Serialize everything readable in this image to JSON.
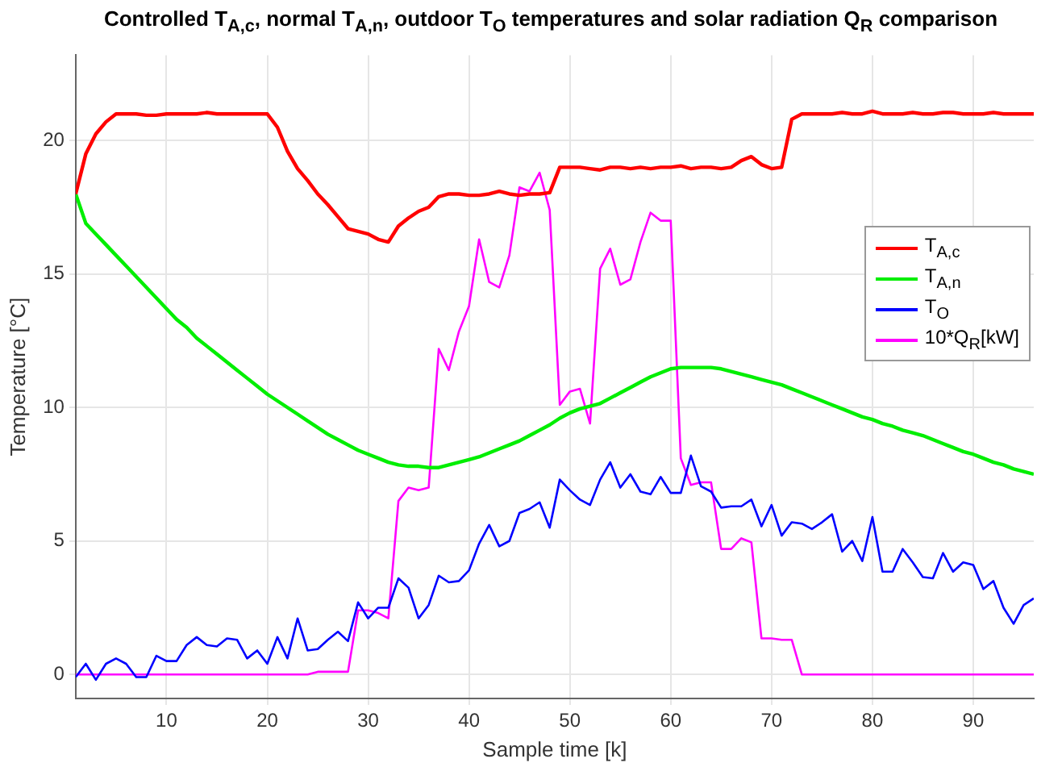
{
  "chart_data": {
    "type": "line",
    "title": "Controlled T$_{A,c}$, normal T$_{A,n}$, outdoor T$_{O}$ temperatures and solar radiation Q$_{R}$ comparison",
    "xlabel": "Sample time [k]",
    "ylabel": "Temperature [°C]",
    "x": [
      1,
      2,
      3,
      4,
      5,
      6,
      7,
      8,
      9,
      10,
      11,
      12,
      13,
      14,
      15,
      16,
      17,
      18,
      19,
      20,
      21,
      22,
      23,
      24,
      25,
      26,
      27,
      28,
      29,
      30,
      31,
      32,
      33,
      34,
      35,
      36,
      37,
      38,
      39,
      40,
      41,
      42,
      43,
      44,
      45,
      46,
      47,
      48,
      49,
      50,
      51,
      52,
      53,
      54,
      55,
      56,
      57,
      58,
      59,
      60,
      61,
      62,
      63,
      64,
      65,
      66,
      67,
      68,
      69,
      70,
      71,
      72,
      73,
      74,
      75,
      76,
      77,
      78,
      79,
      80,
      81,
      82,
      83,
      84,
      85,
      86,
      87,
      88,
      89,
      90,
      91,
      92,
      93,
      94,
      95,
      96
    ],
    "series": [
      {
        "name": "T$_{A,c}$",
        "color": "#ff0000",
        "values": [
          18,
          19.5,
          20.25,
          20.7,
          21,
          21,
          21,
          20.95,
          20.95,
          21,
          21,
          21,
          21,
          21.05,
          21,
          21,
          21,
          21,
          21,
          21,
          20.5,
          19.6,
          18.95,
          18.5,
          18,
          17.6,
          17.15,
          16.7,
          16.6,
          16.5,
          16.3,
          16.2,
          16.8,
          17.1,
          17.35,
          17.5,
          17.9,
          18,
          18,
          17.95,
          17.95,
          18,
          18.1,
          18,
          17.95,
          18,
          18,
          18.05,
          19,
          19,
          19,
          18.95,
          18.9,
          19,
          19,
          18.95,
          19,
          18.95,
          19,
          19,
          19.05,
          18.95,
          19,
          19,
          18.95,
          19,
          19.25,
          19.4,
          19.1,
          18.95,
          19,
          20.8,
          21,
          21,
          21,
          21,
          21.05,
          21,
          21,
          21.1,
          21,
          21,
          21,
          21.05,
          21,
          21,
          21.05,
          21.05,
          21,
          21,
          21,
          21.05,
          21,
          21,
          21,
          21
        ]
      },
      {
        "name": "T$_{A,n}$",
        "color": "#00ee00",
        "values": [
          18,
          16.9,
          16.5,
          16.1,
          15.7,
          15.3,
          14.9,
          14.5,
          14.1,
          13.7,
          13.3,
          13,
          12.6,
          12.3,
          12,
          11.7,
          11.4,
          11.1,
          10.8,
          10.5,
          10.25,
          10,
          9.75,
          9.5,
          9.25,
          9,
          8.8,
          8.6,
          8.4,
          8.25,
          8.1,
          7.95,
          7.85,
          7.8,
          7.8,
          7.75,
          7.75,
          7.85,
          7.95,
          8.05,
          8.15,
          8.3,
          8.45,
          8.6,
          8.75,
          8.95,
          9.15,
          9.35,
          9.6,
          9.8,
          9.95,
          10.05,
          10.15,
          10.35,
          10.55,
          10.75,
          10.95,
          11.15,
          11.3,
          11.45,
          11.5,
          11.5,
          11.5,
          11.5,
          11.45,
          11.35,
          11.25,
          11.15,
          11.05,
          10.95,
          10.85,
          10.7,
          10.55,
          10.4,
          10.25,
          10.1,
          9.95,
          9.8,
          9.65,
          9.55,
          9.4,
          9.3,
          9.15,
          9.05,
          8.95,
          8.8,
          8.65,
          8.5,
          8.35,
          8.25,
          8.1,
          7.95,
          7.85,
          7.7,
          7.6,
          7.5
        ]
      },
      {
        "name": "T$_{O}$",
        "color": "#0000ff",
        "values": [
          -0.1,
          0.4,
          -0.2,
          0.4,
          0.6,
          0.4,
          -0.1,
          -0.1,
          0.7,
          0.5,
          0.5,
          1.1,
          1.4,
          1.1,
          1.05,
          1.35,
          1.3,
          0.6,
          0.9,
          0.4,
          1.4,
          0.6,
          2.1,
          0.9,
          0.95,
          1.3,
          1.6,
          1.25,
          2.7,
          2.1,
          2.5,
          2.5,
          3.6,
          3.25,
          2.1,
          2.6,
          3.7,
          3.45,
          3.5,
          3.9,
          4.9,
          5.6,
          4.8,
          5,
          6.05,
          6.2,
          6.45,
          5.5,
          7.3,
          6.9,
          6.55,
          6.35,
          7.3,
          7.95,
          7,
          7.5,
          6.85,
          6.75,
          7.4,
          6.8,
          6.8,
          8.2,
          7.05,
          6.85,
          6.25,
          6.3,
          6.3,
          6.55,
          5.55,
          6.35,
          5.2,
          5.7,
          5.65,
          5.45,
          5.7,
          6,
          4.6,
          5,
          4.25,
          5.9,
          3.85,
          3.85,
          4.7,
          4.2,
          3.65,
          3.6,
          4.55,
          3.85,
          4.2,
          4.1,
          3.2,
          3.5,
          2.5,
          1.9,
          2.6,
          2.85
        ]
      },
      {
        "name": "10*Q$_{R}$[kW]",
        "color": "#ff00ff",
        "values": [
          0,
          0,
          0,
          0,
          0,
          0,
          0,
          0,
          0,
          0,
          0,
          0,
          0,
          0,
          0,
          0,
          0,
          0,
          0,
          0,
          0,
          0,
          0,
          0,
          0.1,
          0.1,
          0.1,
          0.1,
          2.4,
          2.4,
          2.3,
          2.1,
          6.5,
          7,
          6.9,
          7,
          12.2,
          11.4,
          12.85,
          13.8,
          16.3,
          14.7,
          14.5,
          15.7,
          18.25,
          18.1,
          18.8,
          17.4,
          10.1,
          10.6,
          10.7,
          9.4,
          15.2,
          15.95,
          14.6,
          14.8,
          16.2,
          17.3,
          17,
          17,
          8.1,
          7.1,
          7.2,
          7.2,
          4.7,
          4.7,
          5.1,
          4.95,
          1.35,
          1.35,
          1.3,
          1.3,
          0,
          0,
          0,
          0,
          0,
          0,
          0,
          0,
          0,
          0,
          0,
          0,
          0,
          0,
          0,
          0,
          0,
          0,
          0,
          0,
          0,
          0,
          0,
          0
        ]
      }
    ],
    "xlim": [
      1,
      96
    ],
    "ylim": [
      -0.9,
      23.2
    ],
    "xticks": [
      10,
      20,
      30,
      40,
      50,
      60,
      70,
      80,
      90
    ],
    "yticks": [
      0,
      5,
      10,
      15,
      20
    ],
    "grid": true,
    "legend": "right",
    "marker": "none",
    "line_style": "solid"
  }
}
